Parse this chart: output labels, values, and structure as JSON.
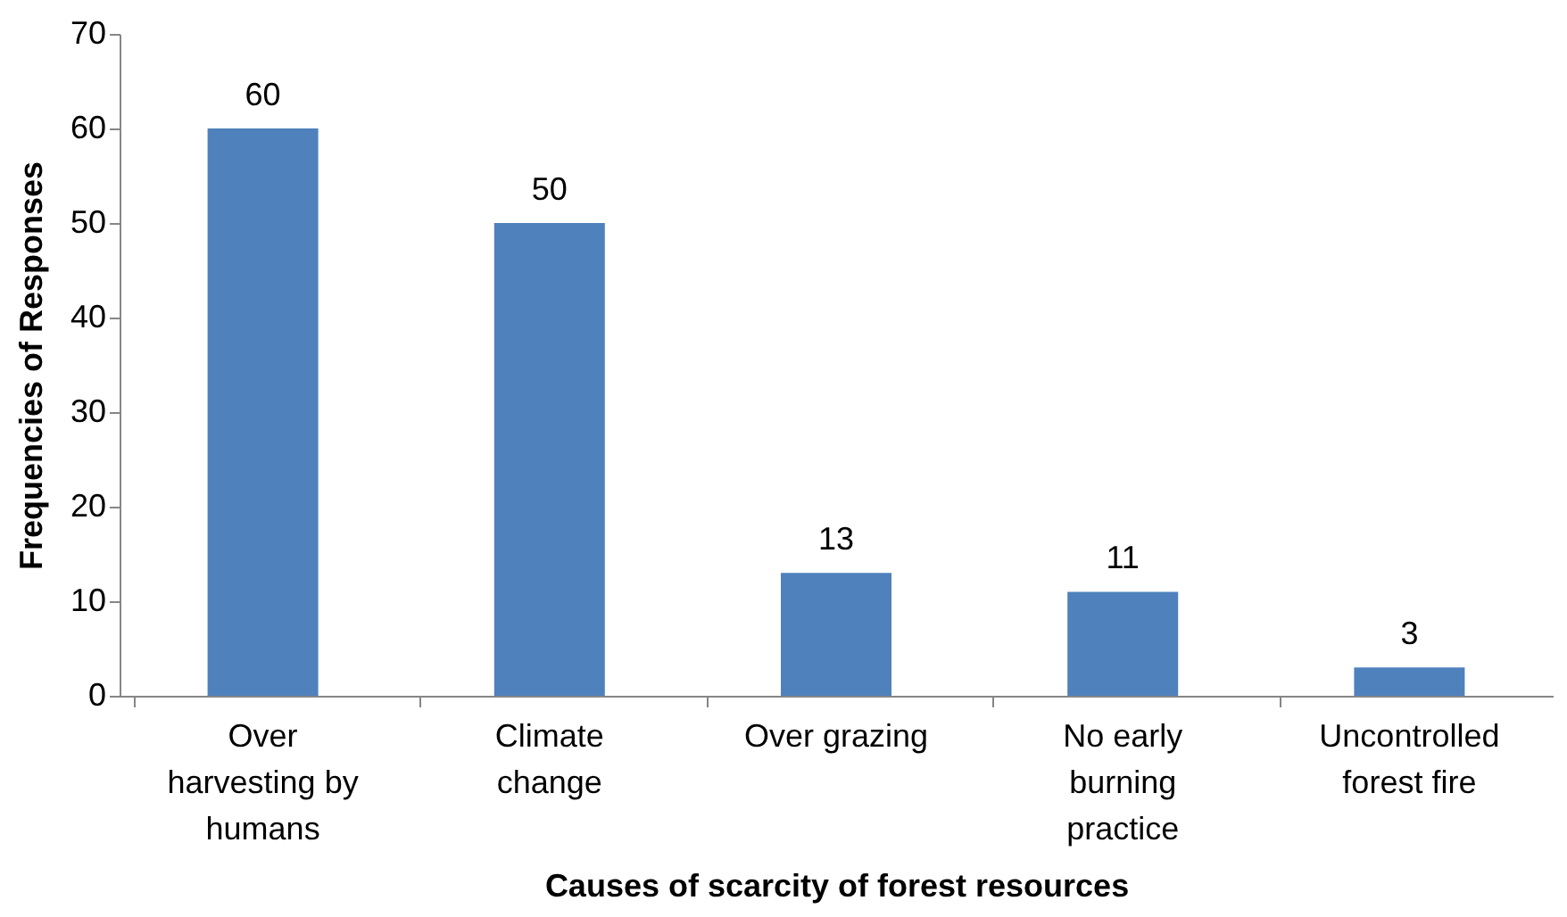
{
  "chart_data": {
    "type": "bar",
    "xlabel": "Causes of scarcity of forest resources",
    "ylabel": "Frequencies of Responses",
    "categories": [
      "Over harvesting by humans",
      "Climate change",
      "Over grazing",
      "No early burning practice",
      "Uncontrolled forest fire"
    ],
    "values": [
      60,
      50,
      13,
      11,
      3
    ],
    "color": "#4f81bd",
    "ylim": [
      0,
      70
    ],
    "yticks": [
      0,
      10,
      20,
      30,
      40,
      50,
      60,
      70
    ],
    "grid": false,
    "data_labels": true
  }
}
